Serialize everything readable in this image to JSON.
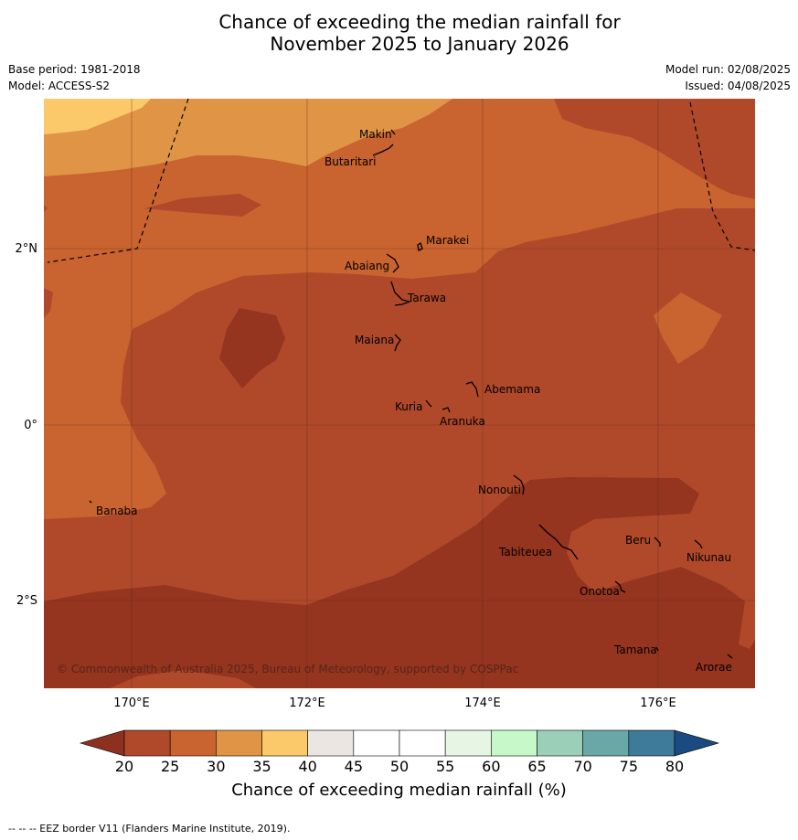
{
  "title_line1": "Chance of exceeding the median rainfall for",
  "title_line2": "November 2025 to January 2026",
  "base_period": "Base period: 1981-2018",
  "model": "Model: ACCESS-S2",
  "model_run": "Model run: 02/08/2025",
  "issued": "Issued: 04/08/2025",
  "x_ticks": [
    "170°E",
    "172°E",
    "174°E",
    "176°E"
  ],
  "y_ticks": [
    "2°N",
    "0°",
    "2°S"
  ],
  "copyright": "© Commonwealth of Australia 2025, Bureau of Meteorology, supported by COSPPac",
  "islands": [
    "Makin",
    "Butaritari",
    "Marakei",
    "Abaiang",
    "Tarawa",
    "Maiana",
    "Abemama",
    "Kuria",
    "Aranuka",
    "Nonouti",
    "Banaba",
    "Tabiteuea",
    "Beru",
    "Nikunau",
    "Onotoa",
    "Tamana",
    "Arorae"
  ],
  "colorbar": {
    "ticks": [
      "20",
      "25",
      "30",
      "35",
      "40",
      "45",
      "50",
      "55",
      "60",
      "65",
      "70",
      "75",
      "80"
    ],
    "colors": [
      "#b0492a",
      "#c9632f",
      "#e09445",
      "#fcc96a",
      "#ebe6e2",
      "#ffffff",
      "#ffffff",
      "#e6f5e4",
      "#c6f8c9",
      "#9ccfb7",
      "#6aa8a8",
      "#3e7b9a"
    ],
    "under_color": "#8e3020",
    "over_color": "#1a4a80",
    "label": "Chance of exceeding median rainfall (%)"
  },
  "map_colors": {
    "c15_20": "#95341f",
    "c20_25": "#b0492a",
    "c25_30": "#c9632f",
    "c30_35": "#e09445",
    "c35_40": "#fcc96a"
  },
  "footer": "--  --  -- EEZ border V11 (Flanders Marine Institute, 2019)."
}
